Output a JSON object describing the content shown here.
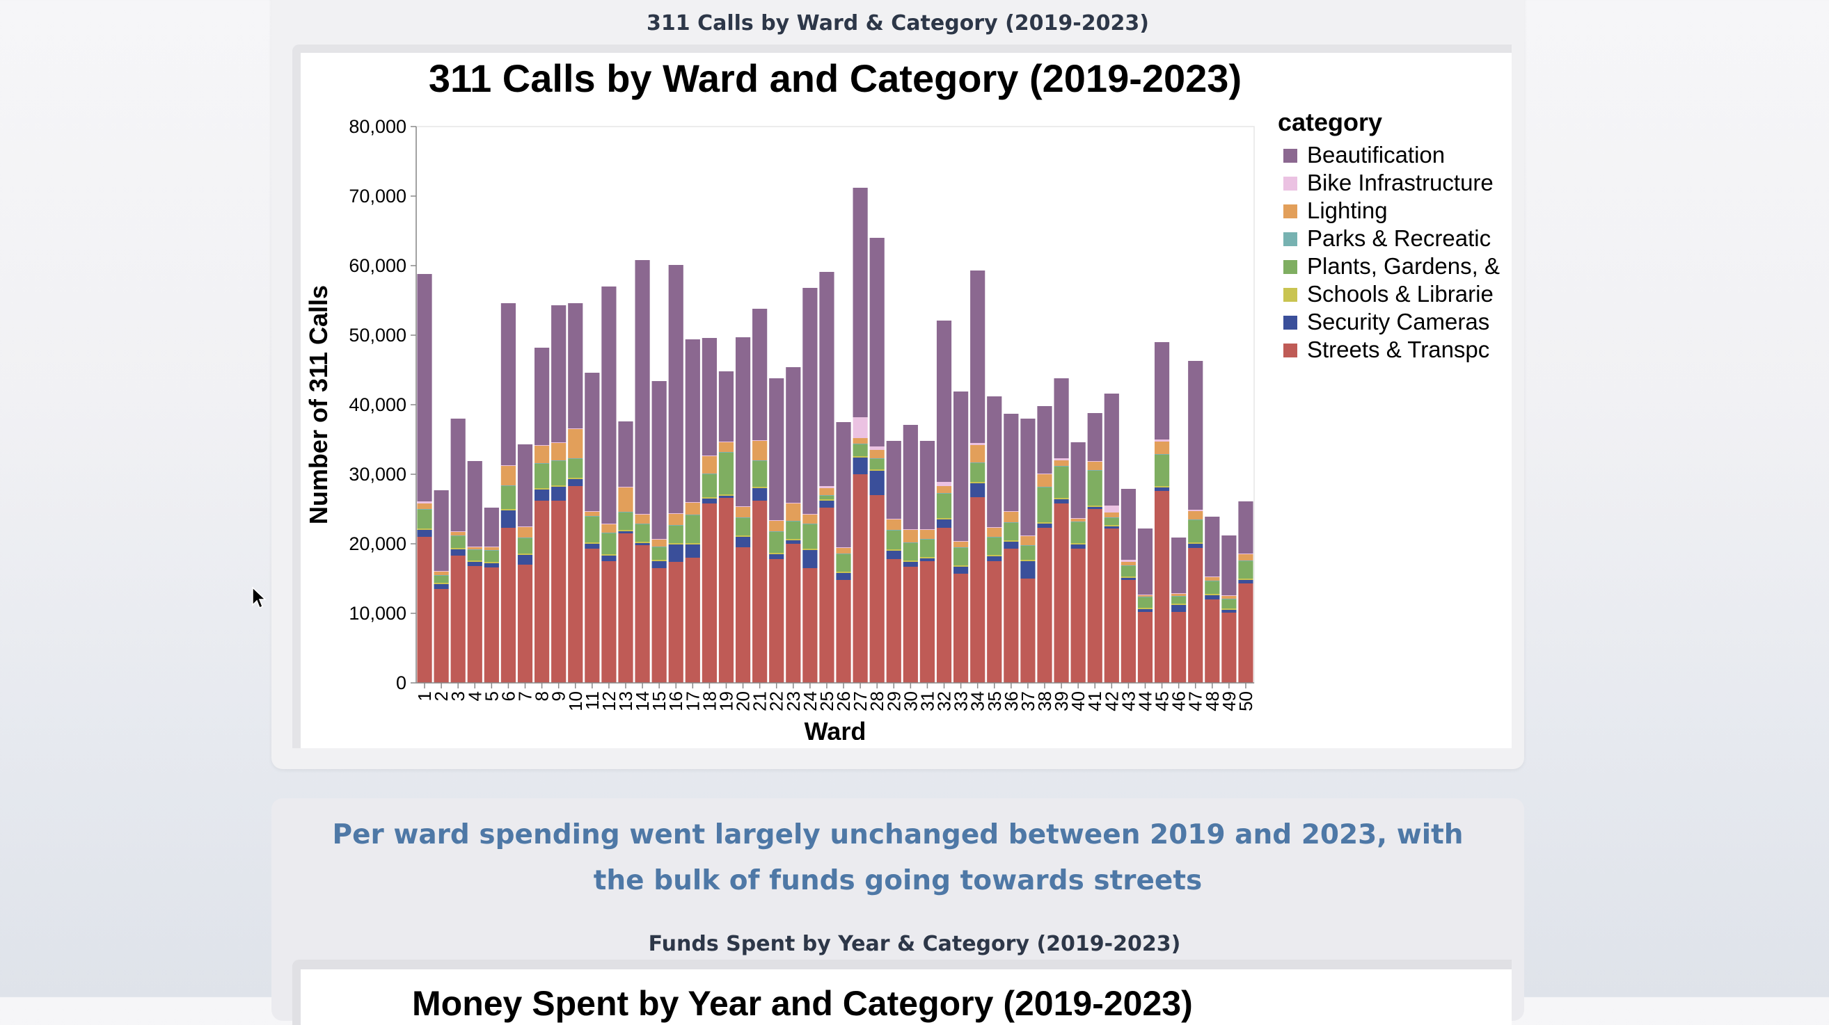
{
  "card1": {
    "title": "311 Calls by Ward & Category (2019-2023)"
  },
  "card2": {
    "headline": "Per ward spending went largely unchanged between 2019 and 2023, with the bulk of funds going towards streets",
    "subtitle": "Funds Spent by Year & Category (2019-2023)",
    "chart_title": "Money Spent by Year and Category (2019-2023)"
  },
  "chart_data": {
    "type": "bar",
    "stacked": true,
    "title": "311 Calls by Ward and Category (2019-2023)",
    "xlabel": "Ward",
    "ylabel": "Number of 311 Calls",
    "ylim": [
      0,
      80000
    ],
    "yticks": [
      0,
      10000,
      20000,
      30000,
      40000,
      50000,
      60000,
      70000,
      80000
    ],
    "ytick_labels": [
      "0",
      "10,000",
      "20,000",
      "30,000",
      "40,000",
      "50,000",
      "60,000",
      "70,000",
      "80,000"
    ],
    "legend_title": "category",
    "legend_position": "right",
    "categories": [
      "1",
      "2",
      "3",
      "4",
      "5",
      "6",
      "7",
      "8",
      "9",
      "10",
      "11",
      "12",
      "13",
      "14",
      "15",
      "16",
      "17",
      "18",
      "19",
      "20",
      "21",
      "22",
      "23",
      "24",
      "25",
      "26",
      "27",
      "28",
      "29",
      "30",
      "31",
      "32",
      "33",
      "34",
      "35",
      "36",
      "37",
      "38",
      "39",
      "40",
      "41",
      "42",
      "43",
      "44",
      "45",
      "46",
      "47",
      "48",
      "49",
      "50"
    ],
    "series": [
      {
        "name": "Streets & Transportation",
        "legend_label": "Streets & Transpc",
        "color": "#bf5b56",
        "values": [
          21000,
          13500,
          18300,
          16800,
          16600,
          22300,
          17000,
          26200,
          26200,
          28300,
          19300,
          17500,
          21500,
          19800,
          16500,
          17400,
          18000,
          25800,
          26600,
          19500,
          26200,
          17800,
          20000,
          16500,
          25200,
          14800,
          30000,
          27000,
          17800,
          16700,
          17500,
          22300,
          15700,
          26700,
          17500,
          19300,
          15000,
          22300,
          25800,
          19300,
          25000,
          22200,
          14800,
          10200,
          27600,
          10200,
          19400,
          12000,
          10100,
          14300
        ]
      },
      {
        "name": "Security Cameras",
        "legend_label": "Security Cameras",
        "color": "#3a4f9a",
        "values": [
          1000,
          700,
          900,
          600,
          600,
          2500,
          1400,
          1600,
          2000,
          1000,
          700,
          800,
          300,
          300,
          1000,
          2500,
          1900,
          700,
          300,
          1500,
          1800,
          700,
          500,
          2600,
          1000,
          1000,
          2400,
          3500,
          1200,
          700,
          400,
          1200,
          1000,
          2000,
          700,
          1000,
          2500,
          600,
          600,
          600,
          300,
          300,
          300,
          400,
          500,
          1000,
          600,
          600,
          400,
          500
        ]
      },
      {
        "name": "Schools & Libraries",
        "legend_label": "Schools & Librarie",
        "color": "#c9c451",
        "values": [
          200,
          200,
          200,
          200,
          200,
          200,
          200,
          200,
          200,
          200,
          200,
          200,
          200,
          200,
          200,
          200,
          200,
          200,
          200,
          200,
          200,
          200,
          200,
          200,
          200,
          200,
          200,
          200,
          200,
          200,
          200,
          200,
          200,
          200,
          200,
          200,
          200,
          200,
          200,
          200,
          200,
          200,
          200,
          200,
          200,
          200,
          200,
          200,
          200,
          200
        ]
      },
      {
        "name": "Plants, Gardens, & Sanitation",
        "legend_label": "Plants, Gardens, &",
        "color": "#7fae61",
        "values": [
          2700,
          1000,
          1700,
          1500,
          1600,
          3300,
          2200,
          3500,
          3500,
          2700,
          3700,
          3000,
          2500,
          2500,
          1800,
          2500,
          4000,
          3300,
          6000,
          2500,
          3700,
          3000,
          2500,
          3500,
          500,
          2500,
          1700,
          1500,
          2700,
          2500,
          2500,
          3500,
          2500,
          2700,
          2500,
          2500,
          2000,
          5000,
          4500,
          3000,
          5000,
          1000,
          1500,
          1500,
          4500,
          1000,
          3200,
          1800,
          1300,
          2500
        ]
      },
      {
        "name": "Parks & Recreation",
        "legend_label": "Parks & Recreatic",
        "color": "#77b2b1",
        "values": [
          100,
          100,
          100,
          100,
          100,
          100,
          100,
          100,
          100,
          100,
          100,
          100,
          100,
          100,
          100,
          100,
          100,
          100,
          100,
          100,
          100,
          100,
          100,
          100,
          100,
          100,
          100,
          100,
          100,
          100,
          100,
          100,
          100,
          100,
          100,
          100,
          100,
          100,
          100,
          100,
          100,
          100,
          100,
          100,
          100,
          100,
          100,
          100,
          100,
          100
        ]
      },
      {
        "name": "Lighting",
        "legend_label": "Lighting",
        "color": "#e29f5a",
        "values": [
          800,
          500,
          500,
          300,
          400,
          2800,
          1500,
          2500,
          2500,
          4200,
          600,
          1200,
          3500,
          1300,
          1000,
          1600,
          1700,
          2500,
          1400,
          1500,
          2800,
          1500,
          2500,
          1300,
          1000,
          800,
          800,
          1200,
          1500,
          1800,
          1300,
          1000,
          800,
          2500,
          1300,
          1500,
          1300,
          1800,
          800,
          400,
          1200,
          700,
          500,
          200,
          1800,
          300,
          1200,
          500,
          400,
          900
        ]
      },
      {
        "name": "Bike Infrastructure",
        "legend_label": "Bike Infrastructure",
        "color": "#ebc2e2",
        "values": [
          300,
          100,
          100,
          100,
          100,
          100,
          100,
          100,
          100,
          100,
          100,
          100,
          100,
          100,
          100,
          100,
          100,
          100,
          100,
          100,
          100,
          100,
          100,
          100,
          300,
          100,
          3000,
          500,
          100,
          100,
          100,
          600,
          100,
          300,
          100,
          100,
          100,
          100,
          300,
          100,
          100,
          1000,
          300,
          100,
          300,
          100,
          200,
          100,
          100,
          100
        ]
      },
      {
        "name": "Beautification",
        "legend_label": "Beautification",
        "color": "#8b6890",
        "values": [
          32700,
          11600,
          16200,
          12300,
          5600,
          23300,
          11800,
          14000,
          19700,
          18000,
          19900,
          34100,
          9400,
          36500,
          22700,
          35700,
          23400,
          16900,
          10100,
          24300,
          18900,
          20400,
          19500,
          32500,
          30800,
          18000,
          33000,
          30000,
          11200,
          15000,
          12700,
          23200,
          21500,
          24800,
          18800,
          14000,
          16800,
          9700,
          11500,
          10900,
          6900,
          16100,
          10200,
          9500,
          14000,
          8000,
          21400,
          8600,
          8600,
          7500
        ]
      }
    ]
  }
}
